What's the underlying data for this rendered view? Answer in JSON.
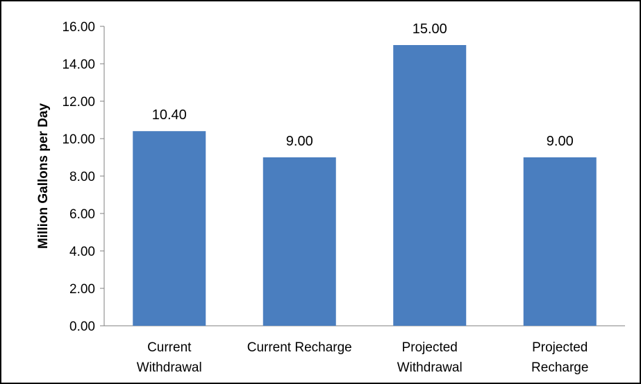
{
  "chart_data": {
    "type": "bar",
    "title": "",
    "xlabel": "",
    "ylabel": "Million Gallons per Day",
    "categories": [
      [
        "Current",
        "Withdrawal"
      ],
      [
        "Current Recharge"
      ],
      [
        "Projected",
        "Withdrawal"
      ],
      [
        "Projected",
        "Recharge"
      ]
    ],
    "values": [
      10.4,
      9.0,
      15.0,
      9.0
    ],
    "value_labels": [
      "10.40",
      "9.00",
      "15.00",
      "9.00"
    ],
    "ylim": [
      0,
      16
    ],
    "yticks": [
      0,
      2,
      4,
      6,
      8,
      10,
      12,
      14,
      16
    ],
    "ytick_labels": [
      "0.00",
      "2.00",
      "4.00",
      "6.00",
      "8.00",
      "10.00",
      "12.00",
      "14.00",
      "16.00"
    ],
    "bar_color": "#4A7EBF",
    "grid": false,
    "legend": "none"
  }
}
